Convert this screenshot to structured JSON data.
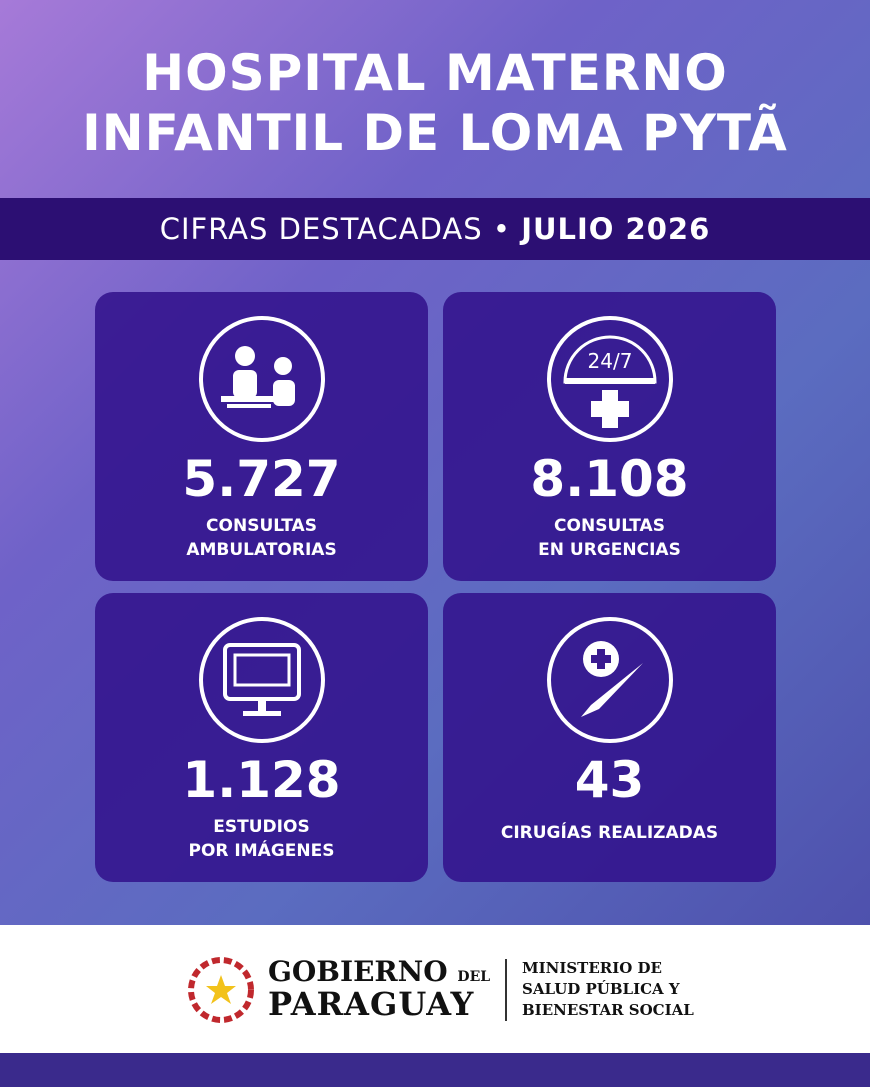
{
  "header": {
    "title_lines": [
      "HOSPITAL MATERNO",
      "INFANTIL DE LOMA PYTÃ"
    ]
  },
  "banner": {
    "label": "CIFRAS DESTACADAS •",
    "period": "JULIO 2026"
  },
  "cards": [
    {
      "value": "5.727",
      "label_lines": [
        "CONSULTAS",
        "AMBULATORIAS"
      ]
    },
    {
      "icon_text": "24/7",
      "value": "8.108",
      "label_lines": [
        "CONSULTAS",
        "EN URGENCIAS"
      ]
    },
    {
      "value": "1.128",
      "label_lines": [
        "ESTUDIOS",
        "POR IMÁGENES"
      ]
    },
    {
      "value": "43",
      "label_lines": [
        "CIRUGÍAS REALIZADAS"
      ]
    }
  ],
  "footer": {
    "gov_line1": "GOBIERNO",
    "gov_del": "DEL",
    "gov_line2": "PARAGUAY",
    "ministry_lines": [
      "MINISTERIO DE",
      "SALUD PÚBLICA Y",
      "BIENESTAR SOCIAL"
    ]
  }
}
